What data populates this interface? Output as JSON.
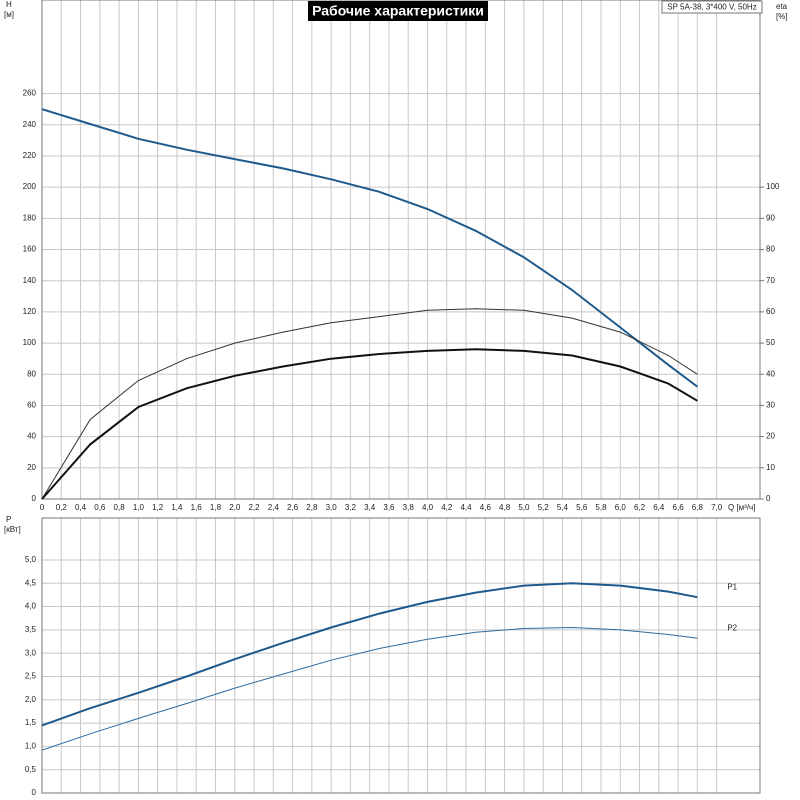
{
  "chart_data": [
    {
      "type": "line",
      "title": "Рабочие характеристики",
      "subtitle": "SP 5A-38, 3*400 V, 50Hz",
      "y_label": "H",
      "y_unit": "[м]",
      "y2_label": "eta",
      "y2_unit": "[%]",
      "x_label": "Q [м³/ч]",
      "x": [
        0,
        0.5,
        1.0,
        1.5,
        2.0,
        2.5,
        3.0,
        3.5,
        4.0,
        4.5,
        5.0,
        5.5,
        6.0,
        6.5,
        6.8
      ],
      "xlim": [
        0,
        7.45
      ],
      "xticks": [
        0,
        {
          "value": 0.2,
          "label": "0,2"
        },
        {
          "value": 0.4,
          "label": "0,4"
        },
        {
          "value": 0.6,
          "label": "0,6"
        },
        {
          "value": 0.8,
          "label": "0,8"
        },
        {
          "value": 1.0,
          "label": "1,0"
        },
        {
          "value": 1.2,
          "label": "1,2"
        },
        {
          "value": 1.4,
          "label": "1,4"
        },
        {
          "value": 1.6,
          "label": "1,6"
        },
        {
          "value": 1.8,
          "label": "1,8"
        },
        {
          "value": 2.0,
          "label": "2,0"
        },
        {
          "value": 2.2,
          "label": "2,2"
        },
        {
          "value": 2.4,
          "label": "2,4"
        },
        {
          "value": 2.6,
          "label": "2,6"
        },
        {
          "value": 2.8,
          "label": "2,8"
        },
        {
          "value": 3.0,
          "label": "3,0"
        },
        {
          "value": 3.2,
          "label": "3,2"
        },
        {
          "value": 3.4,
          "label": "3,4"
        },
        {
          "value": 3.6,
          "label": "3,6"
        },
        {
          "value": 3.8,
          "label": "3,8"
        },
        {
          "value": 4.0,
          "label": "4,0"
        },
        {
          "value": 4.2,
          "label": "4,2"
        },
        {
          "value": 4.4,
          "label": "4,4"
        },
        {
          "value": 4.6,
          "label": "4,6"
        },
        {
          "value": 4.8,
          "label": "4,8"
        },
        {
          "value": 5.0,
          "label": "5,0"
        },
        {
          "value": 5.2,
          "label": "5,2"
        },
        {
          "value": 5.4,
          "label": "5,4"
        },
        {
          "value": 5.6,
          "label": "5,6"
        },
        {
          "value": 5.8,
          "label": "5,8"
        },
        {
          "value": 6.0,
          "label": "6,0"
        },
        {
          "value": 6.2,
          "label": "6,2"
        },
        {
          "value": 6.4,
          "label": "6,4"
        },
        {
          "value": 6.6,
          "label": "6,6"
        },
        {
          "value": 6.8,
          "label": "6,8"
        },
        {
          "value": 7.0,
          "label": "7,0"
        }
      ],
      "ylim": [
        0,
        320
      ],
      "yticks": [
        0,
        20,
        40,
        60,
        80,
        100,
        120,
        140,
        160,
        180,
        200,
        220,
        240,
        260
      ],
      "y2lim": [
        0,
        160
      ],
      "y2ticks": [
        0,
        10,
        20,
        30,
        40,
        50,
        60,
        70,
        80,
        90,
        100
      ],
      "grid": true,
      "series": [
        {
          "color": "#1f5a8c",
          "line_width": 2,
          "values": [
            250,
            240.5,
            231,
            224,
            218,
            212,
            205,
            197,
            186,
            172,
            155,
            134,
            110,
            86,
            72
          ]
        },
        {
          "color": "#333333",
          "line_width": 1,
          "axis": "y2",
          "values": [
            0,
            25.5,
            38,
            45,
            50,
            53.5,
            56.5,
            58.5,
            60.5,
            61,
            60.5,
            58,
            53.5,
            46,
            40
          ]
        },
        {
          "color": "#111111",
          "line_width": 2,
          "axis": "y2",
          "values": [
            0,
            17.5,
            29.5,
            35.5,
            39.5,
            42.5,
            45,
            46.5,
            47.5,
            48,
            47.5,
            46,
            42.5,
            37,
            31.5
          ]
        }
      ]
    },
    {
      "type": "line",
      "y_label": "P",
      "y_unit": "[кВт]",
      "x": [
        0,
        0.5,
        1.0,
        1.5,
        2.0,
        2.5,
        3.0,
        3.5,
        4.0,
        4.5,
        5.0,
        5.5,
        6.0,
        6.5,
        6.8
      ],
      "xlim": [
        0,
        7.45
      ],
      "ylim": [
        0,
        5.9
      ],
      "yticks": [
        0,
        {
          "value": 0.5,
          "label": "0,5"
        },
        {
          "value": 1.0,
          "label": "1,0"
        },
        {
          "value": 1.5,
          "label": "1,5"
        },
        {
          "value": 2.0,
          "label": "2,0"
        },
        {
          "value": 2.5,
          "label": "2,5"
        },
        {
          "value": 3.0,
          "label": "3,0"
        },
        {
          "value": 3.5,
          "label": "3,5"
        },
        {
          "value": 4.0,
          "label": "4,0"
        },
        {
          "value": 4.5,
          "label": "4,5"
        },
        {
          "value": 5.0,
          "label": "5,0"
        }
      ],
      "grid": true,
      "series": [
        {
          "name": "P1",
          "color": "#1f5a8c",
          "line_width": 2,
          "values": [
            1.45,
            1.82,
            2.15,
            2.5,
            2.87,
            3.22,
            3.55,
            3.85,
            4.1,
            4.3,
            4.45,
            4.5,
            4.45,
            4.32,
            4.2
          ]
        },
        {
          "name": "P2",
          "color": "#2f6a9c",
          "line_width": 1,
          "values": [
            0.92,
            1.27,
            1.6,
            1.92,
            2.25,
            2.55,
            2.85,
            3.1,
            3.3,
            3.45,
            3.53,
            3.55,
            3.5,
            3.4,
            3.32
          ]
        }
      ]
    }
  ]
}
